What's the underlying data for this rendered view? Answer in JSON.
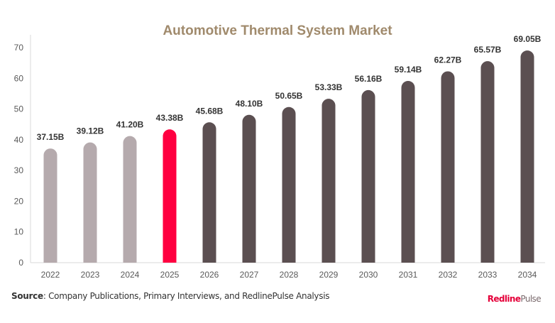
{
  "chart_data": {
    "type": "bar",
    "title": "Automotive Thermal System Market",
    "categories": [
      "2022",
      "2023",
      "2024",
      "2025",
      "2026",
      "2027",
      "2028",
      "2029",
      "2030",
      "2031",
      "2032",
      "2033",
      "2034"
    ],
    "values": [
      37.15,
      39.12,
      41.2,
      43.38,
      45.68,
      48.1,
      50.65,
      53.33,
      56.16,
      59.14,
      62.27,
      65.57,
      69.05
    ],
    "data_labels": [
      "37.15B",
      "39.12B",
      "41.20B",
      "43.38B",
      "45.68B",
      "48.10B",
      "50.65B",
      "53.33B",
      "56.16B",
      "59.14B",
      "62.27B",
      "65.57B",
      "69.05B"
    ],
    "ylim": [
      0,
      70
    ],
    "yticks": [
      0,
      10,
      20,
      30,
      40,
      50,
      60,
      70
    ],
    "grid": false,
    "legend": "none",
    "colors": {
      "historical": "#b5aaad",
      "current": "#ff0040",
      "forecast": "#5b4f51",
      "title": "#a08a6c"
    },
    "current_year": "2025"
  },
  "footer": {
    "source_label": "Source",
    "source_text": ": Company Publications, Primary Interviews, and RedlinePulse Analysis",
    "logo_part1": "Redline",
    "logo_part2": "Pulse"
  }
}
